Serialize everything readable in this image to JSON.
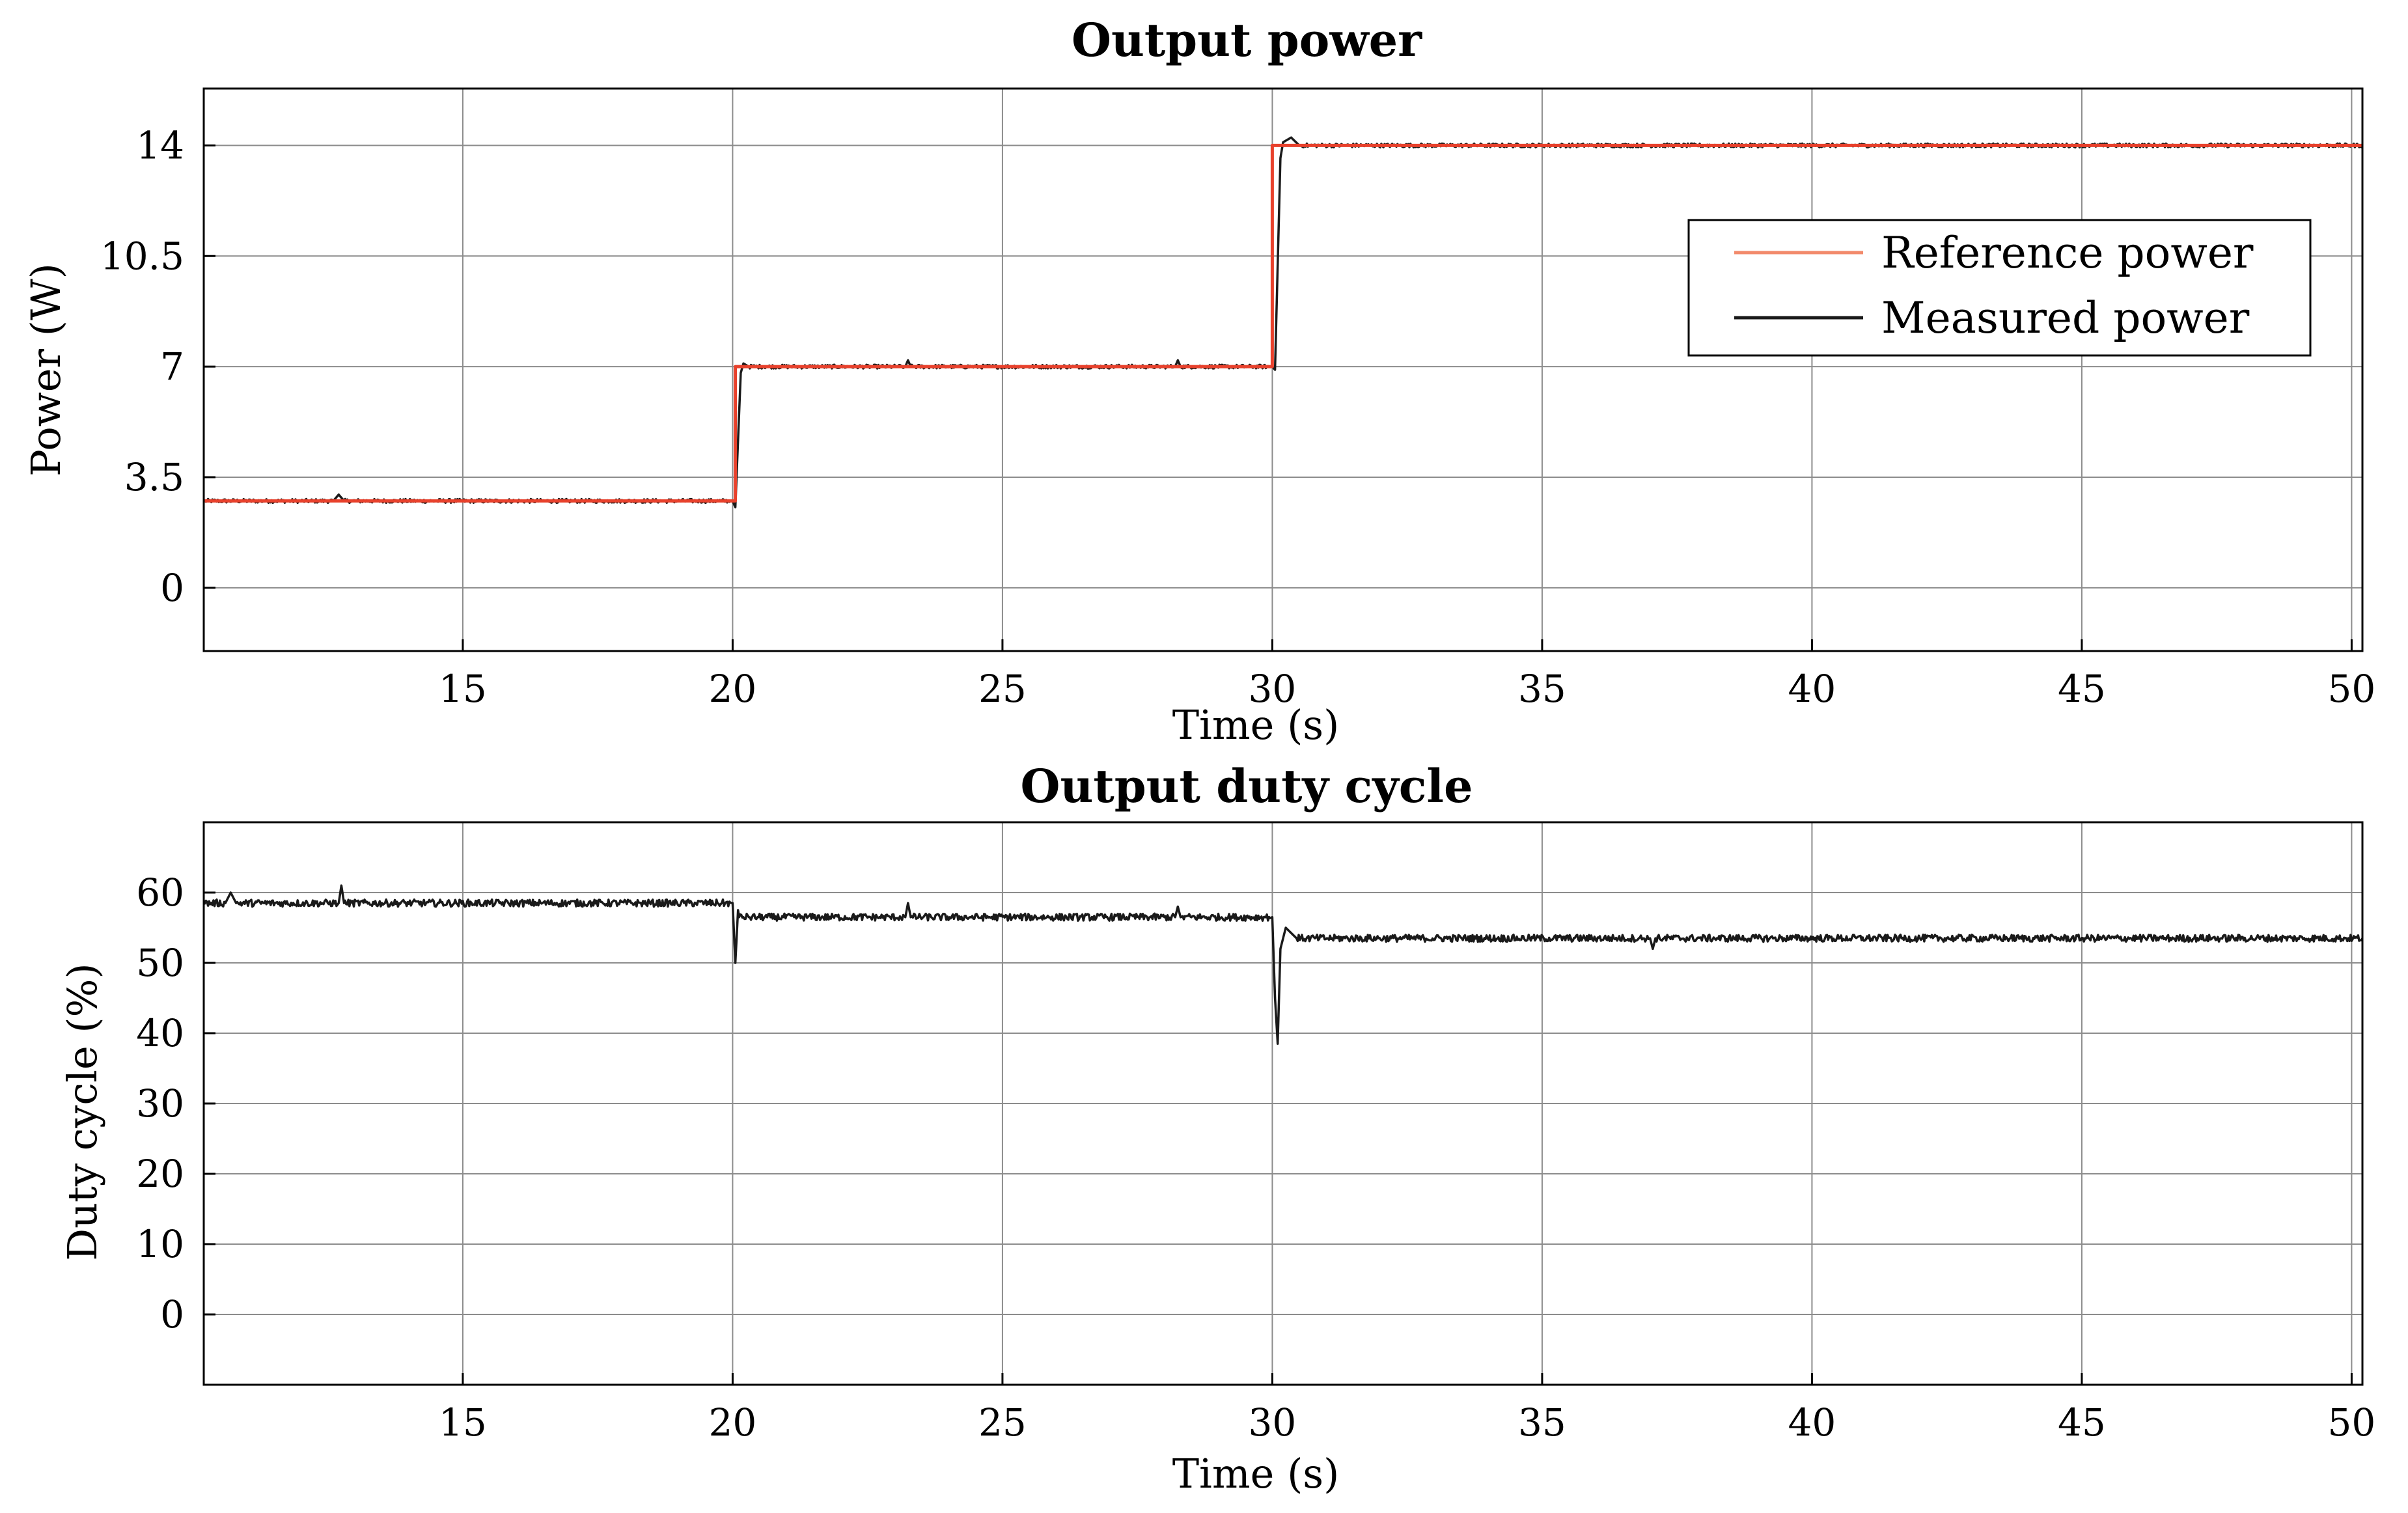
{
  "chart_data": [
    {
      "type": "line",
      "title": "Output power",
      "xlabel": "Time (s)",
      "ylabel": "Power (W)",
      "xlim": [
        10.2,
        50.2
      ],
      "ylim": [
        -2.0,
        15.8
      ],
      "xticks": [
        15,
        20,
        25,
        30,
        35,
        40,
        45,
        50
      ],
      "xtick_labels": [
        "15",
        "20",
        "25",
        "30",
        "35",
        "40",
        "45",
        "50"
      ],
      "yticks": [
        0,
        3.5,
        7,
        10.5,
        14
      ],
      "ytick_labels": [
        "0",
        "3.5",
        "7",
        "10.5",
        "14"
      ],
      "grid": true,
      "legend": "right",
      "series": [
        {
          "name": "Reference power",
          "color": "#e8412c",
          "x": [
            10.2,
            20.05,
            20.05,
            30.0,
            30.0,
            50.2
          ],
          "y": [
            2.75,
            2.75,
            7.0,
            7.0,
            14.0,
            14.0
          ]
        },
        {
          "name": "Measured power",
          "color": "#1a1a1a",
          "noise": 0.06,
          "x": [
            10.2,
            12.6,
            12.7,
            12.8,
            20.0,
            20.05,
            20.15,
            20.2,
            20.3,
            23.2,
            23.25,
            23.3,
            28.2,
            28.25,
            28.3,
            30.0,
            30.05,
            30.15,
            30.2,
            30.35,
            30.5,
            30.6,
            50.2
          ],
          "y": [
            2.75,
            2.75,
            2.95,
            2.75,
            2.75,
            2.55,
            6.8,
            7.1,
            7.0,
            7.0,
            7.2,
            7.0,
            7.0,
            7.2,
            7.0,
            7.0,
            6.9,
            13.6,
            14.1,
            14.25,
            14.0,
            14.0,
            14.0
          ]
        }
      ]
    },
    {
      "type": "line",
      "title": "Output duty cycle",
      "xlabel": "Time (s)",
      "ylabel": "Duty cycle (%)",
      "xlim": [
        10.2,
        50.2
      ],
      "ylim": [
        -10,
        70
      ],
      "xticks": [
        15,
        20,
        25,
        30,
        35,
        40,
        45,
        50
      ],
      "xtick_labels": [
        "15",
        "20",
        "25",
        "30",
        "35",
        "40",
        "45",
        "50"
      ],
      "yticks": [
        0,
        10,
        20,
        30,
        40,
        50,
        60
      ],
      "ytick_labels": [
        "0",
        "10",
        "20",
        "30",
        "40",
        "50",
        "60"
      ],
      "grid": true,
      "series": [
        {
          "color": "#1a1a1a",
          "noise": 0.5,
          "x": [
            10.2,
            10.6,
            10.7,
            10.8,
            12.7,
            12.75,
            12.8,
            20.0,
            20.05,
            20.1,
            20.12,
            20.3,
            23.2,
            23.25,
            23.3,
            28.2,
            28.25,
            28.3,
            30.0,
            30.05,
            30.1,
            30.15,
            30.25,
            30.45,
            37.0,
            37.05,
            37.1,
            50.2
          ],
          "y": [
            58.5,
            58.5,
            60.0,
            58.5,
            58.5,
            61.0,
            58.5,
            58.5,
            50.0,
            57.5,
            56.5,
            56.5,
            56.5,
            58.5,
            56.5,
            56.5,
            58.0,
            56.5,
            56.5,
            45.0,
            38.5,
            52.0,
            55.0,
            53.5,
            53.5,
            52.0,
            53.5,
            53.5
          ]
        }
      ]
    }
  ]
}
